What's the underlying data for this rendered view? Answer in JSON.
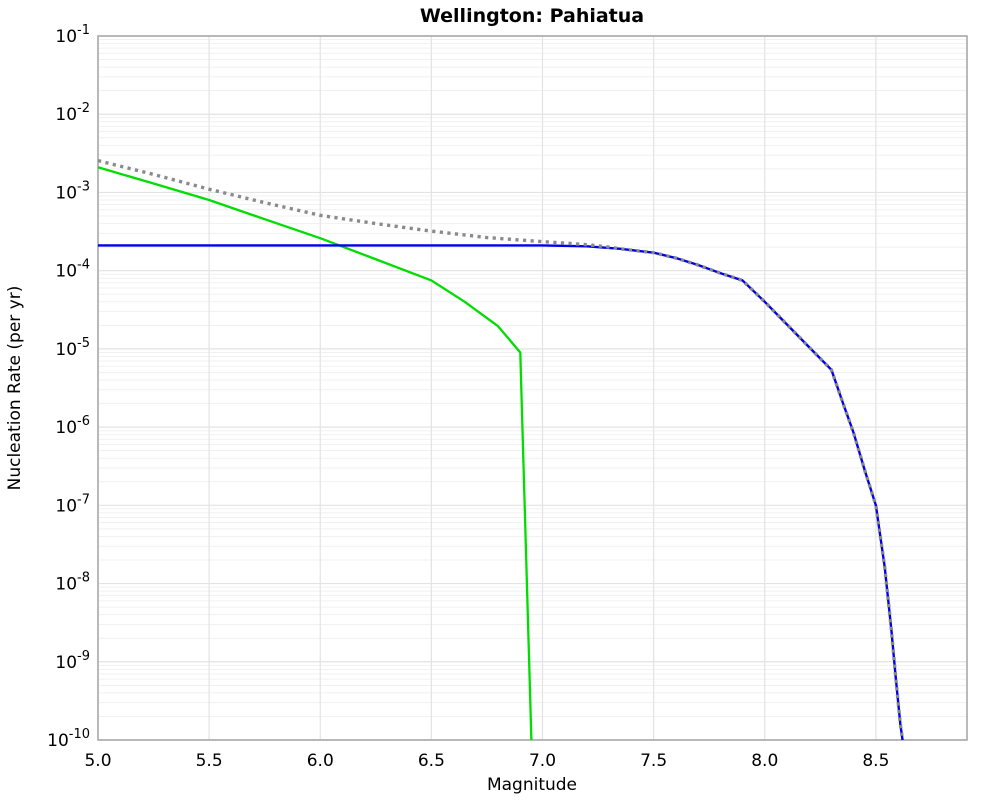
{
  "chart_data": {
    "type": "line",
    "title": "Wellington: Pahiatua",
    "xlabel": "Magnitude",
    "ylabel": "Nucleation Rate (per yr)",
    "xlim": [
      5.0,
      8.91
    ],
    "ylim_log10": [
      -10,
      -1
    ],
    "x_ticks": [
      5.0,
      5.5,
      6.0,
      6.5,
      7.0,
      7.5,
      8.0,
      8.5
    ],
    "x_tick_labels": [
      "5.0",
      "5.5",
      "6.0",
      "6.5",
      "7.0",
      "7.5",
      "8.0",
      "8.5"
    ],
    "y_tick_exponents": [
      -1,
      -2,
      -3,
      -4,
      -5,
      -6,
      -7,
      -8,
      -9,
      -10
    ],
    "grid": true,
    "legend": "none",
    "background_color": "#ffffff",
    "grid_major_color": "#e3e3e3",
    "grid_minor_color": "#f1f1f1",
    "border_color": "#a9a9a9",
    "series": [
      {
        "name": "truncated-gr-curve",
        "color": "#00dd00",
        "style": "solid",
        "width": 2.3,
        "points": [
          [
            5.0,
            0.0021
          ],
          [
            5.25,
            0.0013
          ],
          [
            5.5,
            0.0008
          ],
          [
            5.75,
            0.000455
          ],
          [
            6.0,
            0.00026
          ],
          [
            6.25,
            0.00014
          ],
          [
            6.5,
            7.5e-05
          ],
          [
            6.65,
            4e-05
          ],
          [
            6.8,
            1.95e-05
          ],
          [
            6.9,
            9e-06
          ],
          [
            6.95,
            1e-10
          ]
        ]
      },
      {
        "name": "characteristic-rate-curve",
        "color": "#0000ee",
        "style": "solid",
        "width": 2.4,
        "points": [
          [
            5.0,
            0.00021
          ],
          [
            6.0,
            0.00021
          ],
          [
            7.0,
            0.00021
          ],
          [
            7.2,
            0.000205
          ],
          [
            7.35,
            0.00019
          ],
          [
            7.5,
            0.00017
          ],
          [
            7.6,
            0.000145
          ],
          [
            7.7,
            0.000118
          ],
          [
            7.8,
            9.3e-05
          ],
          [
            7.9,
            7.5e-05
          ],
          [
            8.0,
            4e-05
          ],
          [
            8.1,
            2.05e-05
          ],
          [
            8.2,
            1.05e-05
          ],
          [
            8.3,
            5.4e-06
          ],
          [
            8.35,
            2.1e-06
          ],
          [
            8.4,
            8.4e-07
          ],
          [
            8.45,
            2.8e-07
          ],
          [
            8.5,
            1e-07
          ],
          [
            8.54,
            1.6e-08
          ],
          [
            8.57,
            2.5e-09
          ],
          [
            8.59,
            6e-10
          ],
          [
            8.61,
            1.6e-10
          ],
          [
            8.62,
            1e-10
          ]
        ]
      },
      {
        "name": "reference-gr-dotted-curve",
        "color": "#8a8a8a",
        "style": "dotted",
        "width": 3.4,
        "points": [
          [
            5.0,
            0.00255
          ],
          [
            5.25,
            0.0017
          ],
          [
            5.5,
            0.0011
          ],
          [
            5.75,
            0.00074
          ],
          [
            6.0,
            0.00051
          ],
          [
            6.25,
            0.0004
          ],
          [
            6.5,
            0.00032
          ],
          [
            6.75,
            0.000265
          ],
          [
            7.0,
            0.000235
          ],
          [
            7.1,
            0.000225
          ],
          [
            7.2,
            0.000215
          ],
          [
            7.3,
            0.0002
          ],
          [
            7.35,
            0.00019
          ],
          [
            7.5,
            0.00017
          ],
          [
            7.6,
            0.000145
          ],
          [
            7.7,
            0.000118
          ],
          [
            7.8,
            9.3e-05
          ],
          [
            7.9,
            7.5e-05
          ],
          [
            8.0,
            4e-05
          ],
          [
            8.1,
            2.05e-05
          ],
          [
            8.2,
            1.05e-05
          ],
          [
            8.3,
            5.4e-06
          ],
          [
            8.35,
            2.1e-06
          ],
          [
            8.4,
            8.4e-07
          ],
          [
            8.45,
            2.8e-07
          ],
          [
            8.5,
            1e-07
          ],
          [
            8.54,
            1.6e-08
          ],
          [
            8.57,
            2.5e-09
          ],
          [
            8.59,
            6e-10
          ],
          [
            8.61,
            1.6e-10
          ],
          [
            8.62,
            1e-10
          ]
        ]
      }
    ]
  }
}
